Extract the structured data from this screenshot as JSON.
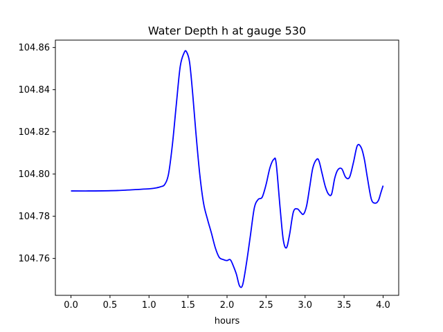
{
  "chart_data": {
    "type": "line",
    "title": "Water Depth h at gauge 530",
    "xlabel": "hours",
    "ylabel": "",
    "xlim": [
      -0.2,
      4.2
    ],
    "ylim": [
      104.7425,
      104.8635
    ],
    "xticks": [
      0.0,
      0.5,
      1.0,
      1.5,
      2.0,
      2.5,
      3.0,
      3.5,
      4.0
    ],
    "xtick_labels": [
      "0.0",
      "0.5",
      "1.0",
      "1.5",
      "2.0",
      "2.5",
      "3.0",
      "3.5",
      "4.0"
    ],
    "yticks": [
      104.76,
      104.78,
      104.8,
      104.82,
      104.84,
      104.86
    ],
    "ytick_labels": [
      "104.76",
      "104.78",
      "104.80",
      "104.82",
      "104.84",
      "104.86"
    ],
    "grid": false,
    "legend": "none",
    "series": [
      {
        "color": "#0000ff",
        "x": [
          0.0,
          0.3,
          0.6,
          0.9,
          1.0,
          1.05,
          1.1,
          1.15,
          1.2,
          1.25,
          1.3,
          1.35,
          1.4,
          1.45,
          1.48,
          1.52,
          1.56,
          1.6,
          1.65,
          1.7,
          1.75,
          1.8,
          1.85,
          1.9,
          1.95,
          2.0,
          2.03,
          2.05,
          2.08,
          2.12,
          2.16,
          2.2,
          2.25,
          2.3,
          2.35,
          2.4,
          2.45,
          2.5,
          2.55,
          2.6,
          2.63,
          2.68,
          2.72,
          2.76,
          2.8,
          2.85,
          2.9,
          2.94,
          2.98,
          3.02,
          3.06,
          3.1,
          3.15,
          3.18,
          3.22,
          3.26,
          3.3,
          3.34,
          3.38,
          3.42,
          3.47,
          3.52,
          3.57,
          3.62,
          3.67,
          3.72,
          3.76,
          3.8,
          3.85,
          3.9,
          3.94,
          3.97,
          4.0
        ],
        "y": [
          104.792,
          104.792,
          104.7922,
          104.7928,
          104.793,
          104.7932,
          104.7935,
          104.794,
          104.795,
          104.8,
          104.814,
          104.833,
          104.851,
          104.8575,
          104.858,
          104.853,
          104.838,
          104.82,
          104.8,
          104.786,
          104.7785,
          104.772,
          104.765,
          104.7605,
          104.7595,
          104.759,
          104.7595,
          104.759,
          104.7565,
          104.7525,
          104.747,
          104.7475,
          104.758,
          104.771,
          104.784,
          104.788,
          104.789,
          104.795,
          104.803,
          104.807,
          104.805,
          104.784,
          104.769,
          104.765,
          104.771,
          104.782,
          104.7835,
          104.782,
          104.781,
          104.785,
          104.794,
          104.803,
          104.807,
          104.806,
          104.8,
          104.794,
          104.7905,
          104.7905,
          104.798,
          104.802,
          104.8025,
          104.7985,
          104.7985,
          104.8055,
          104.8135,
          104.8125,
          104.807,
          104.798,
          104.788,
          104.7862,
          104.7875,
          104.791,
          104.7945
        ]
      }
    ]
  }
}
